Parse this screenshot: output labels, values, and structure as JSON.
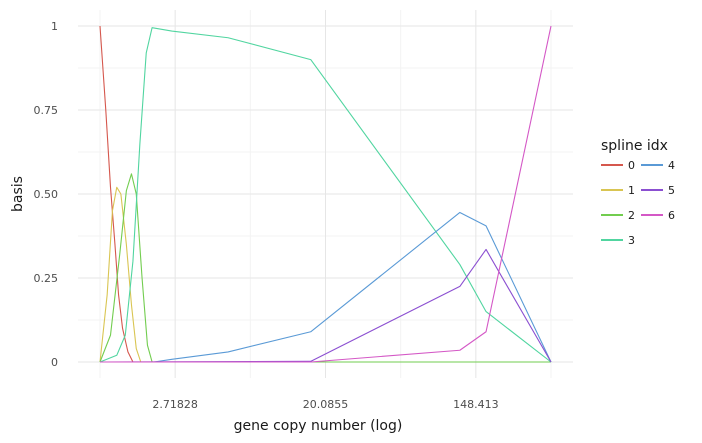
{
  "chart_data": {
    "type": "line",
    "xlabel": "gene copy number (log)",
    "ylabel": "basis",
    "x_scale": "log",
    "xlim": [
      1.0,
      403.4
    ],
    "ylim": [
      0,
      1
    ],
    "x_ticks": [
      {
        "value": 2.71828,
        "label": "2.71828"
      },
      {
        "value": 20.0855,
        "label": "20.0855"
      },
      {
        "value": 148.413,
        "label": "148.413"
      }
    ],
    "y_ticks": [
      {
        "value": 0,
        "label": "0"
      },
      {
        "value": 0.25,
        "label": "0.25"
      },
      {
        "value": 0.5,
        "label": "0.50"
      },
      {
        "value": 0.75,
        "label": "0.75"
      },
      {
        "value": 1,
        "label": "1"
      }
    ],
    "grid": true,
    "legend": {
      "title": "spline idx",
      "position": "right"
    },
    "series": [
      {
        "name": "0",
        "color": "#D5574D",
        "points": [
          [
            1.0,
            1.0
          ],
          [
            1.08,
            0.75
          ],
          [
            1.15,
            0.52
          ],
          [
            1.22,
            0.35
          ],
          [
            1.28,
            0.2
          ],
          [
            1.35,
            0.1
          ],
          [
            1.45,
            0.03
          ],
          [
            1.55,
            0.0
          ],
          [
            403.4,
            0.0
          ]
        ]
      },
      {
        "name": "1",
        "color": "#D9C552",
        "points": [
          [
            1.0,
            0.0
          ],
          [
            1.1,
            0.2
          ],
          [
            1.18,
            0.45
          ],
          [
            1.25,
            0.52
          ],
          [
            1.32,
            0.5
          ],
          [
            1.42,
            0.35
          ],
          [
            1.52,
            0.17
          ],
          [
            1.62,
            0.04
          ],
          [
            1.72,
            0.0
          ],
          [
            403.4,
            0.0
          ]
        ]
      },
      {
        "name": "2",
        "color": "#72CD4F",
        "points": [
          [
            1.0,
            0.0
          ],
          [
            1.15,
            0.08
          ],
          [
            1.3,
            0.32
          ],
          [
            1.42,
            0.51
          ],
          [
            1.52,
            0.56
          ],
          [
            1.62,
            0.5
          ],
          [
            1.75,
            0.25
          ],
          [
            1.88,
            0.05
          ],
          [
            2.0,
            0.0
          ],
          [
            403.4,
            0.0
          ]
        ]
      },
      {
        "name": "3",
        "color": "#51D5A0",
        "points": [
          [
            1.0,
            0.0
          ],
          [
            1.25,
            0.02
          ],
          [
            1.4,
            0.08
          ],
          [
            1.55,
            0.3
          ],
          [
            1.7,
            0.65
          ],
          [
            1.85,
            0.92
          ],
          [
            2.0,
            0.995
          ],
          [
            2.6,
            0.985
          ],
          [
            5.5,
            0.965
          ],
          [
            16.5,
            0.9
          ],
          [
            120.0,
            0.29
          ],
          [
            170.0,
            0.15
          ],
          [
            403.4,
            0.0
          ]
        ]
      },
      {
        "name": "4",
        "color": "#5A9AD6",
        "points": [
          [
            1.0,
            0.0
          ],
          [
            2.05,
            0.0
          ],
          [
            2.6,
            0.008
          ],
          [
            5.5,
            0.03
          ],
          [
            16.5,
            0.09
          ],
          [
            120.0,
            0.445
          ],
          [
            170.0,
            0.405
          ],
          [
            403.4,
            0.0
          ]
        ]
      },
      {
        "name": "5",
        "color": "#8B4FD1",
        "points": [
          [
            1.0,
            0.0
          ],
          [
            16.5,
            0.002
          ],
          [
            120.0,
            0.225
          ],
          [
            170.0,
            0.335
          ],
          [
            403.4,
            0.0
          ]
        ]
      },
      {
        "name": "6",
        "color": "#D458C6",
        "points": [
          [
            1.0,
            0.0
          ],
          [
            16.5,
            0.0
          ],
          [
            120.0,
            0.035
          ],
          [
            170.0,
            0.09
          ],
          [
            403.4,
            1.0
          ]
        ]
      }
    ]
  }
}
